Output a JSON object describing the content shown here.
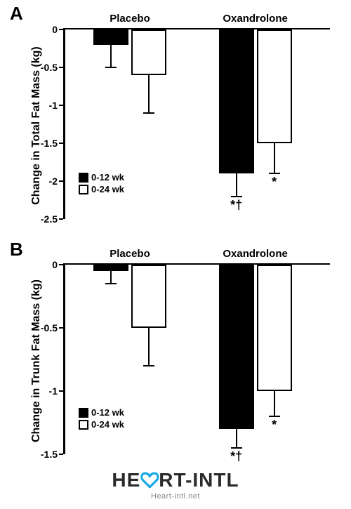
{
  "colors": {
    "black": "#000000",
    "white": "#ffffff",
    "heart_blue": "#18a8e6",
    "logo_text": "#2a2a2a",
    "logo_sub": "#888888"
  },
  "typography": {
    "panel_label_size": 26,
    "axis_title_size": 16,
    "tick_label_size": 14,
    "group_label_size": 15,
    "legend_size": 13,
    "sig_size": 18
  },
  "legend": {
    "items": [
      {
        "swatch": "black",
        "label": "0-12 wk"
      },
      {
        "swatch": "white",
        "label": "0-24 wk"
      }
    ]
  },
  "panelA": {
    "label": "A",
    "y_title": "Change in Total Fat Mass (kg)",
    "ylim": [
      -2.5,
      0
    ],
    "yticks": [
      0,
      -0.5,
      -1,
      -1.5,
      -2,
      -2.5
    ],
    "ytick_labels": [
      "0",
      "-0.5",
      "-1",
      "-1.5",
      "-2",
      "-2.5"
    ],
    "groups": [
      "Placebo",
      "Oxandrolone"
    ],
    "bars": [
      {
        "group": 0,
        "series": "black",
        "value": -0.2,
        "err": 0.3,
        "sig": ""
      },
      {
        "group": 0,
        "series": "white",
        "value": -0.6,
        "err": 0.5,
        "sig": ""
      },
      {
        "group": 1,
        "series": "black",
        "value": -1.9,
        "err": 0.3,
        "sig": "*†"
      },
      {
        "group": 1,
        "series": "white",
        "value": -1.5,
        "err": 0.4,
        "sig": "*"
      }
    ]
  },
  "panelB": {
    "label": "B",
    "y_title": "Change in Trunk Fat Mass (kg)",
    "ylim": [
      -1.5,
      0
    ],
    "yticks": [
      0,
      -0.5,
      -1,
      -1.5
    ],
    "ytick_labels": [
      "0",
      "-0.5",
      "-1",
      "-1.5"
    ],
    "groups": [
      "Placebo",
      "Oxandrolone"
    ],
    "bars": [
      {
        "group": 0,
        "series": "black",
        "value": -0.05,
        "err": 0.1,
        "sig": ""
      },
      {
        "group": 0,
        "series": "white",
        "value": -0.5,
        "err": 0.3,
        "sig": ""
      },
      {
        "group": 1,
        "series": "black",
        "value": -1.3,
        "err": 0.15,
        "sig": "*†"
      },
      {
        "group": 1,
        "series": "white",
        "value": -1.0,
        "err": 0.2,
        "sig": "*"
      }
    ]
  },
  "logo": {
    "text_before": "HE",
    "text_after": "RT-INTL",
    "sub": "Heart-intl.net",
    "main_size": 28,
    "sub_size": 11
  }
}
